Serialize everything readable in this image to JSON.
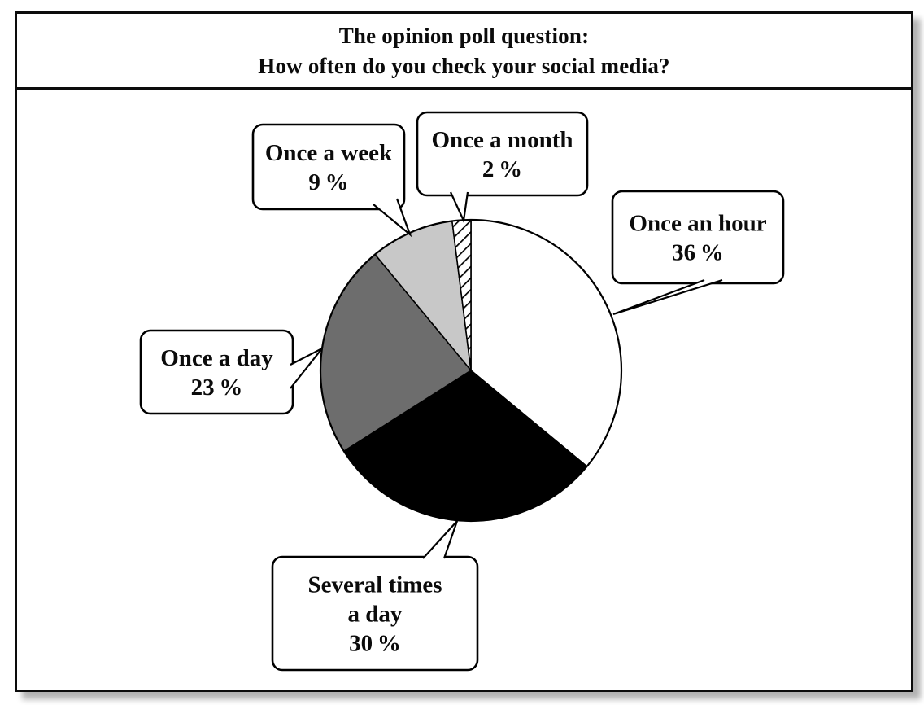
{
  "title": {
    "line1": "The opinion poll question:",
    "line2": "How often do you check your social media?"
  },
  "colors": {
    "frame_border": "#0c0c0c",
    "slice_white": "#ffffff",
    "slice_black": "#000000",
    "slice_dark_gray": "#6d6d6d",
    "slice_light_gray": "#c8c8c8",
    "hatch_stripe": "#000000",
    "callout_background": "#ffffff",
    "callout_border": "#000000"
  },
  "chart_data": {
    "type": "pie",
    "title": "The opinion poll question: How often do you check your social media?",
    "unit": "percent",
    "start_angle": "12 o'clock",
    "direction": "clockwise",
    "legend_position": "callout bubbles around pie",
    "grid": false,
    "categories": [
      "Once an hour",
      "Several times a day",
      "Once a day",
      "Once a week",
      "Once a month"
    ],
    "values": [
      36,
      30,
      23,
      9,
      2
    ],
    "slices": [
      {
        "id": "once-an-hour",
        "label": "Once an hour",
        "value": 36,
        "fill": "#ffffff",
        "pattern": "none",
        "callout_lines": [
          "Once an hour",
          "36 %"
        ]
      },
      {
        "id": "several-times-a-day",
        "label": "Several times a day",
        "value": 30,
        "fill": "#000000",
        "pattern": "none",
        "callout_lines": [
          "Several times",
          "a day",
          "30 %"
        ]
      },
      {
        "id": "once-a-day",
        "label": "Once a day",
        "value": 23,
        "fill": "#6d6d6d",
        "pattern": "none",
        "callout_lines": [
          "Once a day",
          "23 %"
        ]
      },
      {
        "id": "once-a-week",
        "label": "Once a week",
        "value": 9,
        "fill": "#c8c8c8",
        "pattern": "none",
        "callout_lines": [
          "Once a week",
          "9 %"
        ]
      },
      {
        "id": "once-a-month",
        "label": "Once a month",
        "value": 2,
        "fill": "#ffffff",
        "pattern": "diagonal-hatch",
        "callout_lines": [
          "Once a month",
          "2 %"
        ]
      }
    ]
  }
}
